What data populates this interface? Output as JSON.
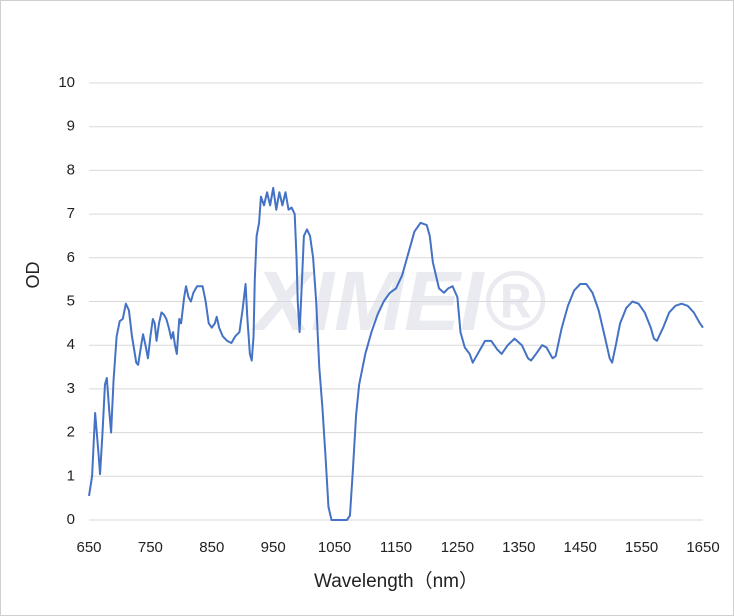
{
  "chart_data": {
    "type": "line",
    "xlabel": "Wavelength（nm）",
    "ylabel": "OD",
    "watermark": "XIMEI®",
    "xlim": [
      650,
      1650
    ],
    "xticks": [
      650,
      750,
      850,
      950,
      1050,
      1150,
      1250,
      1350,
      1450,
      1550,
      1650
    ],
    "ylim": [
      0,
      10
    ],
    "yticks": [
      0,
      1,
      2,
      3,
      4,
      5,
      6,
      7,
      8,
      9,
      10
    ],
    "grid": true,
    "x": [
      650,
      655,
      660,
      665,
      668,
      672,
      676,
      679,
      683,
      686,
      690,
      695,
      700,
      705,
      710,
      715,
      720,
      727,
      730,
      735,
      738,
      742,
      746,
      750,
      754,
      757,
      760,
      764,
      768,
      772,
      776,
      780,
      784,
      787,
      790,
      793,
      797,
      800,
      805,
      808,
      812,
      816,
      820,
      826,
      835,
      840,
      845,
      850,
      855,
      858,
      862,
      868,
      875,
      882,
      888,
      895,
      900,
      905,
      908,
      912,
      915,
      918,
      920,
      923,
      927,
      930,
      935,
      940,
      945,
      950,
      955,
      960,
      965,
      970,
      975,
      980,
      985,
      988,
      990,
      993,
      996,
      1000,
      1005,
      1010,
      1015,
      1020,
      1025,
      1030,
      1035,
      1040,
      1045,
      1060,
      1070,
      1075,
      1080,
      1085,
      1090,
      1100,
      1110,
      1120,
      1130,
      1140,
      1150,
      1160,
      1170,
      1180,
      1190,
      1200,
      1205,
      1210,
      1220,
      1228,
      1235,
      1242,
      1250,
      1255,
      1262,
      1270,
      1275,
      1283,
      1295,
      1305,
      1315,
      1322,
      1332,
      1343,
      1355,
      1365,
      1370,
      1378,
      1388,
      1395,
      1405,
      1410,
      1420,
      1430,
      1440,
      1450,
      1460,
      1470,
      1480,
      1490,
      1498,
      1502,
      1508,
      1515,
      1525,
      1535,
      1545,
      1555,
      1565,
      1570,
      1575,
      1585,
      1595,
      1605,
      1615,
      1625,
      1635,
      1645,
      1650
    ],
    "series": [
      {
        "name": "OD",
        "color": "#4472c4",
        "values": [
          0.55,
          1.0,
          2.45,
          1.6,
          1.05,
          2.0,
          3.1,
          3.25,
          2.5,
          2.0,
          3.2,
          4.2,
          4.55,
          4.6,
          4.95,
          4.8,
          4.2,
          3.6,
          3.55,
          4.0,
          4.25,
          4.0,
          3.7,
          4.2,
          4.6,
          4.5,
          4.1,
          4.5,
          4.75,
          4.7,
          4.6,
          4.4,
          4.15,
          4.3,
          4.0,
          3.8,
          4.6,
          4.5,
          5.1,
          5.35,
          5.1,
          5.0,
          5.2,
          5.35,
          5.35,
          5.0,
          4.5,
          4.4,
          4.5,
          4.65,
          4.4,
          4.2,
          4.1,
          4.05,
          4.2,
          4.3,
          4.8,
          5.4,
          4.6,
          3.8,
          3.65,
          4.2,
          5.5,
          6.5,
          6.8,
          7.4,
          7.2,
          7.5,
          7.2,
          7.6,
          7.1,
          7.5,
          7.2,
          7.5,
          7.1,
          7.15,
          7.0,
          6.0,
          5.0,
          4.3,
          5.2,
          6.5,
          6.65,
          6.5,
          6.0,
          5.0,
          3.5,
          2.6,
          1.5,
          0.3,
          0.0,
          0.0,
          0.0,
          0.1,
          1.2,
          2.4,
          3.1,
          3.8,
          4.3,
          4.7,
          5.0,
          5.2,
          5.3,
          5.6,
          6.1,
          6.6,
          6.8,
          6.75,
          6.5,
          5.9,
          5.3,
          5.2,
          5.3,
          5.35,
          5.1,
          4.3,
          3.95,
          3.8,
          3.6,
          3.8,
          4.1,
          4.1,
          3.9,
          3.8,
          4.0,
          4.15,
          4.0,
          3.7,
          3.65,
          3.8,
          4.0,
          3.95,
          3.7,
          3.75,
          4.4,
          4.9,
          5.25,
          5.4,
          5.4,
          5.2,
          4.8,
          4.2,
          3.7,
          3.6,
          4.0,
          4.5,
          4.85,
          5.0,
          4.95,
          4.75,
          4.4,
          4.15,
          4.1,
          4.4,
          4.75,
          4.9,
          4.95,
          4.9,
          4.75,
          4.5,
          4.4
        ]
      }
    ]
  }
}
